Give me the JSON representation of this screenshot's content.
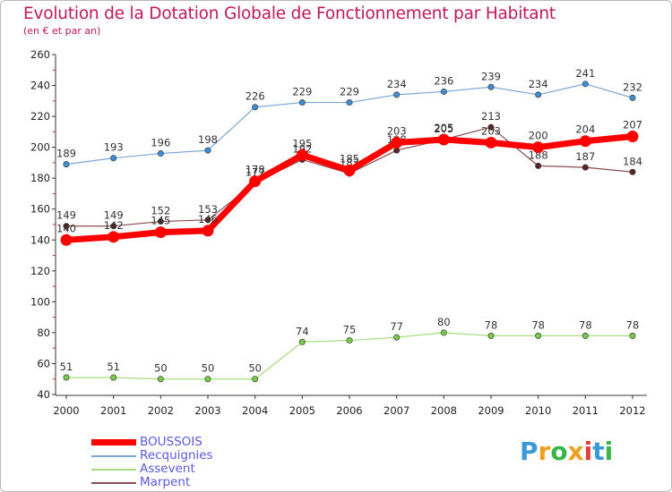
{
  "chart_data": {
    "type": "line",
    "title": "Evolution de la Dotation Globale de Fonctionnement par Habitant",
    "subtitle": "(en € et par an)",
    "xlabel": "",
    "ylabel": "",
    "categories": [
      "2000",
      "2001",
      "2002",
      "2003",
      "2004",
      "2005",
      "2006",
      "2007",
      "2008",
      "2009",
      "2010",
      "2011",
      "2012"
    ],
    "ylim": [
      40,
      260
    ],
    "yticks": [
      40,
      60,
      80,
      100,
      120,
      140,
      160,
      180,
      200,
      220,
      240,
      260
    ],
    "grid": false,
    "legend": "bottom-left",
    "series": [
      {
        "name": "Recquignies",
        "color": "#7aa7d4",
        "marker_color": "#3d8fd1",
        "width": 1.2,
        "values": [
          189,
          193,
          196,
          198,
          226,
          229,
          229,
          234,
          236,
          239,
          234,
          241,
          232
        ]
      },
      {
        "name": "Assevent",
        "color": "#a6dd80",
        "marker_color": "#77c94a",
        "width": 1.2,
        "values": [
          51,
          51,
          50,
          50,
          50,
          74,
          75,
          77,
          80,
          78,
          78,
          78,
          78
        ]
      },
      {
        "name": "Marpent",
        "color": "#8a4d52",
        "marker_color": "#5a2326",
        "width": 1.2,
        "values": [
          149,
          149,
          152,
          153,
          177,
          192,
          183,
          198,
          205,
          213,
          188,
          187,
          184
        ]
      },
      {
        "name": "BOUSSOIS",
        "color": "#ff0000",
        "marker_color": "#ff0000",
        "width": 7,
        "values": [
          140,
          142,
          145,
          146,
          178,
          195,
          185,
          203,
          205,
          203,
          200,
          204,
          207
        ]
      }
    ]
  },
  "legend": {
    "items": [
      {
        "name": "BOUSSOIS",
        "color": "#ff0000"
      },
      {
        "name": "Recquignies",
        "color": "#7aa7d4"
      },
      {
        "name": "Assevent",
        "color": "#a6dd80"
      },
      {
        "name": "Marpent",
        "color": "#8a4d52"
      }
    ]
  },
  "logo": {
    "letters": [
      "P",
      "r",
      "o",
      "x",
      "i",
      "t",
      "i"
    ],
    "colors": [
      "#3a9ad9",
      "#f0a020",
      "#3ab54a",
      "#f0a020",
      "#e04040",
      "#3a9ad9",
      "#3ab54a"
    ]
  }
}
